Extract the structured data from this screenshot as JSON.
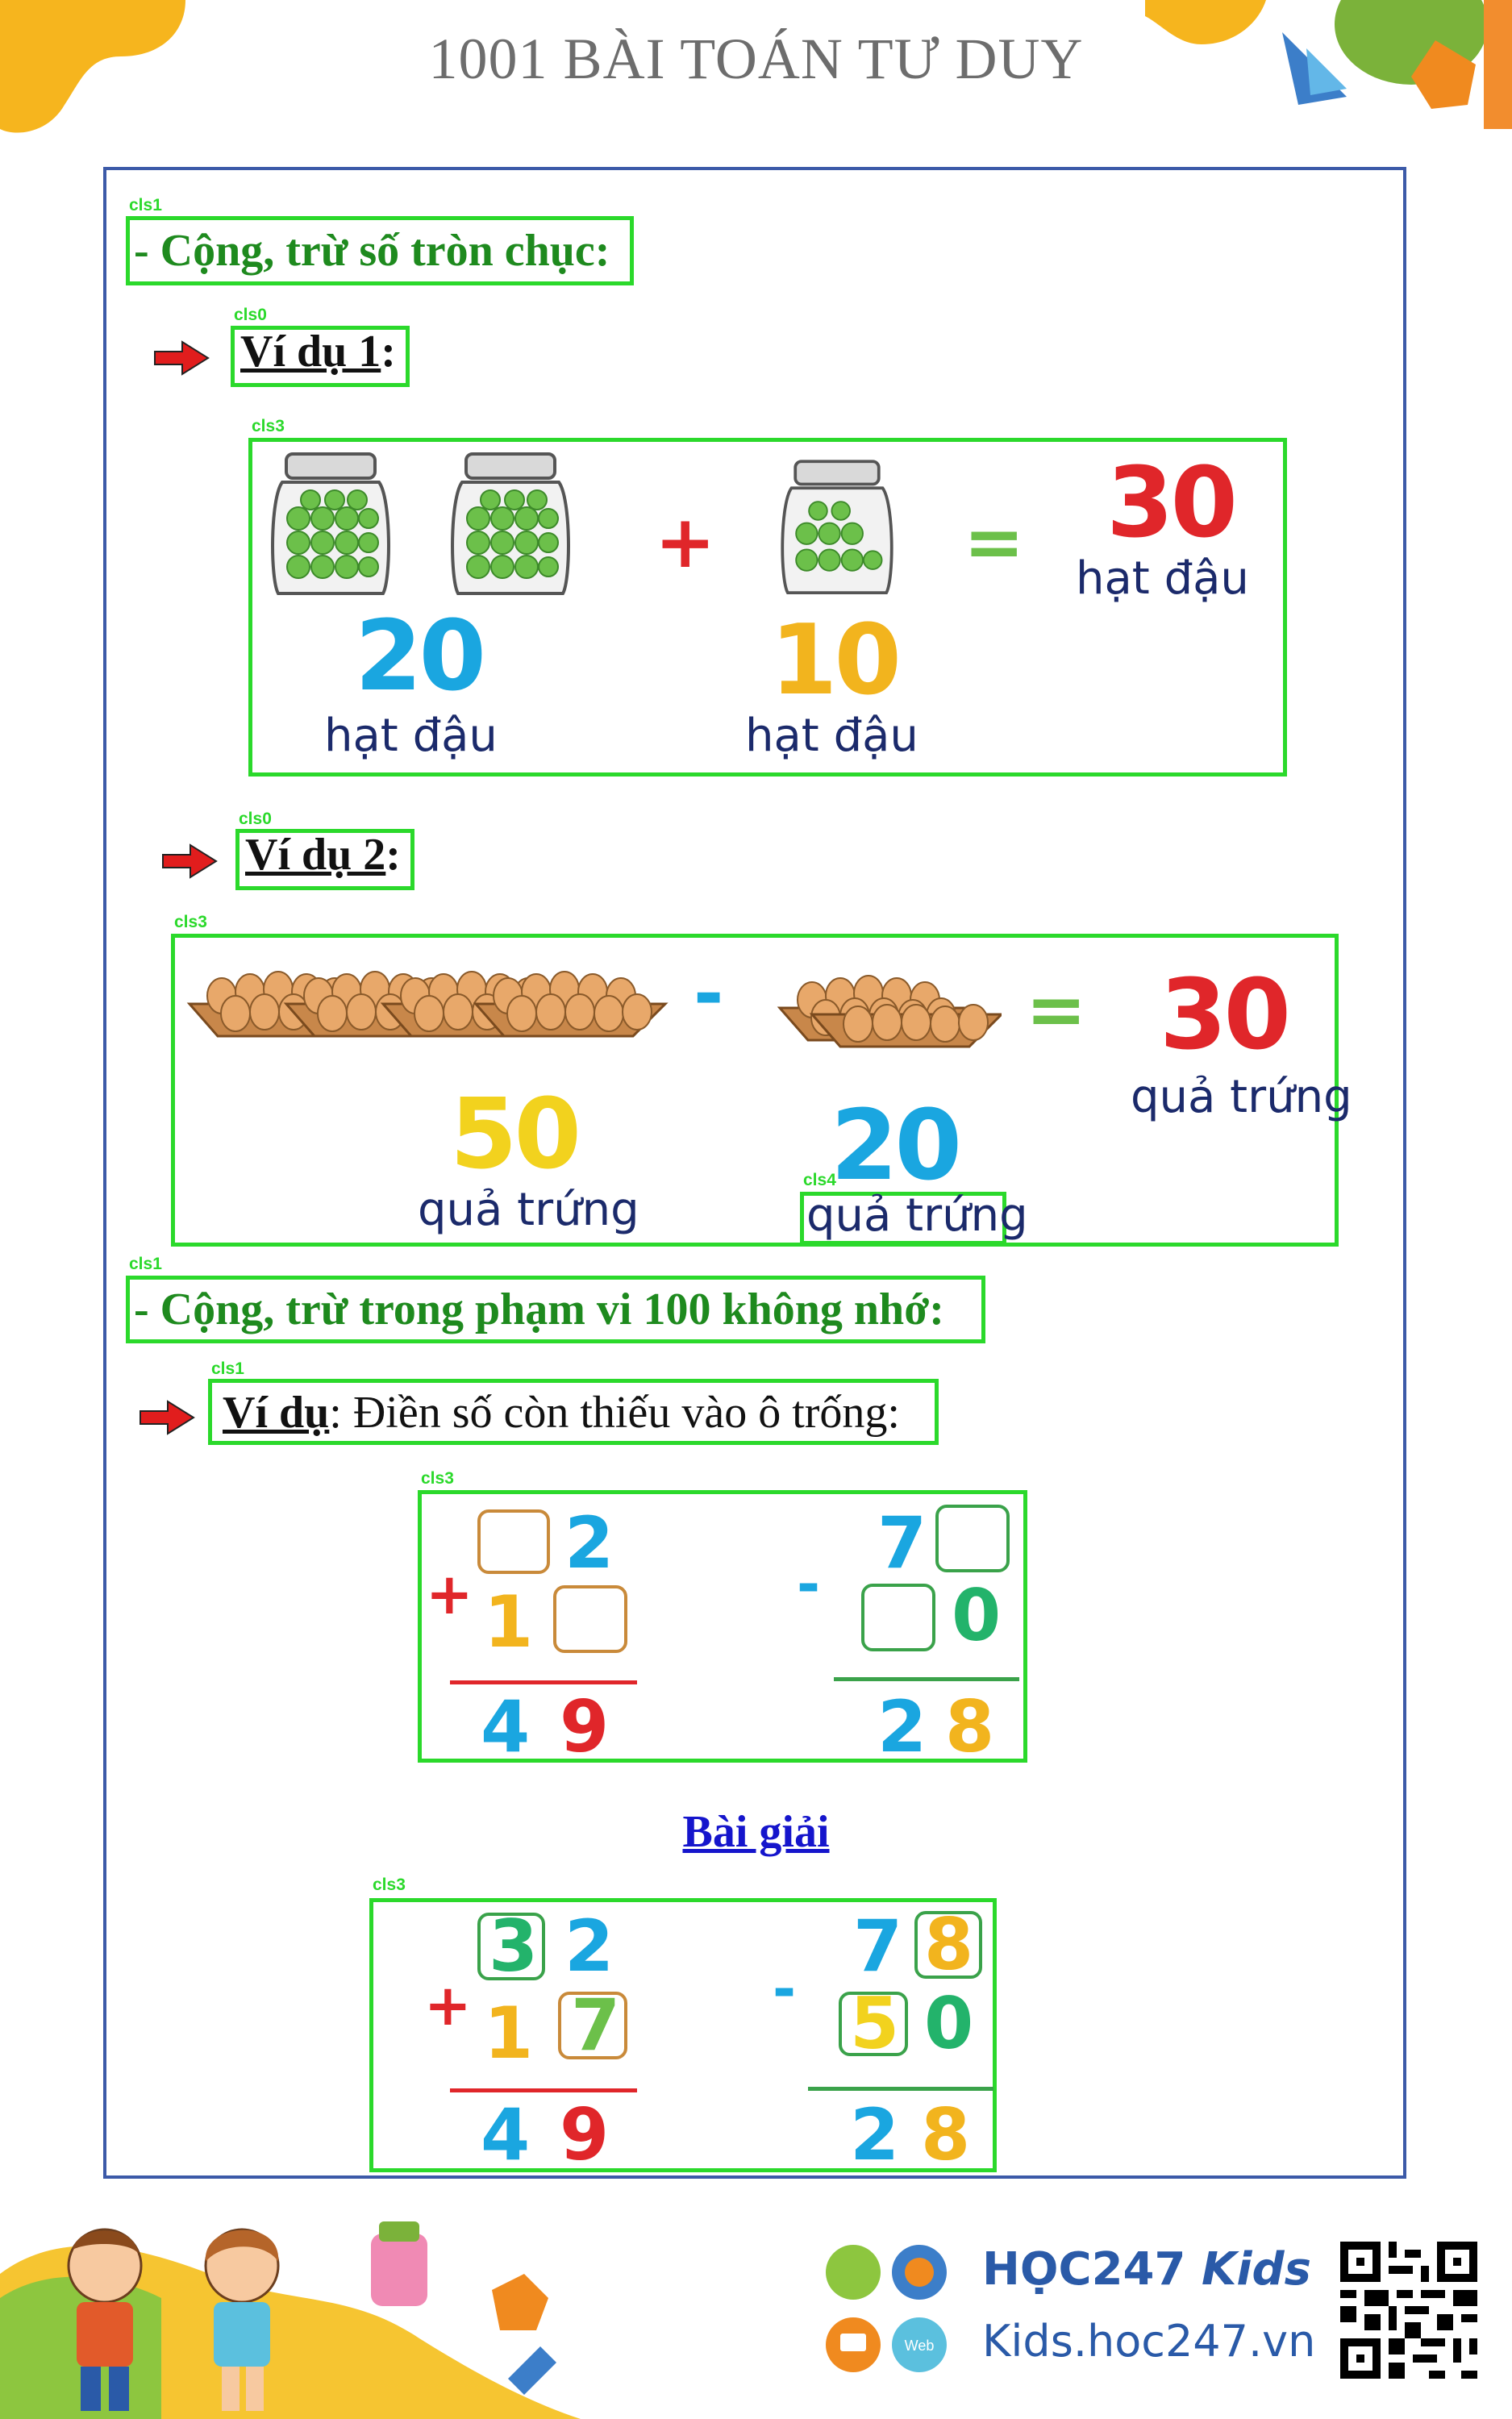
{
  "header": {
    "title": "1001 BÀI TOÁN TƯ DUY"
  },
  "labels": {
    "cls0": "cls0",
    "cls1": "cls1",
    "cls3": "cls3",
    "cls4": "cls4"
  },
  "section1": {
    "title": "- Cộng, trừ số tròn chục:"
  },
  "example1": {
    "label": "Ví dụ 1",
    "colon": ":",
    "a_value": "20",
    "a_unit": "hạt đậu",
    "plus": "+",
    "b_value": "10",
    "b_unit": "hạt đậu",
    "equals": "=",
    "result_value": "30",
    "result_unit": "hạt đậu"
  },
  "example2": {
    "label": "Ví dụ 2",
    "colon": ":",
    "a_value": "50",
    "a_unit": "quả trứng",
    "minus": "-",
    "b_value": "20",
    "b_unit": "quả trứng",
    "equals": "=",
    "result_value": "30",
    "result_unit": "quả trứng"
  },
  "section2": {
    "title": "- Cộng, trừ trong phạm vi 100 không nhớ:"
  },
  "example3": {
    "label": "Ví dụ",
    "text": ": Điền số còn thiếu vào ô trống:"
  },
  "problem": {
    "add": {
      "top_ones": "2",
      "bottom_tens": "1",
      "result_tens": "4",
      "result_ones": "9",
      "op": "+"
    },
    "sub": {
      "top_tens": "7",
      "bottom_ones": "0",
      "result_tens": "2",
      "result_ones": "8",
      "op": "-"
    }
  },
  "solution_title": "Bài giải",
  "solution": {
    "add": {
      "top_tens": "3",
      "top_ones": "2",
      "bottom_tens": "1",
      "bottom_ones": "7",
      "result_tens": "4",
      "result_ones": "9",
      "op": "+"
    },
    "sub": {
      "top_tens": "7",
      "top_ones": "8",
      "bottom_tens": "5",
      "bottom_ones": "0",
      "result_tens": "2",
      "result_ones": "8",
      "op": "-"
    }
  },
  "footer": {
    "brand": "HỌC247",
    "brand_kids": "Kids",
    "website": "Kids.hoc247.vn",
    "web_badge": "Web"
  }
}
